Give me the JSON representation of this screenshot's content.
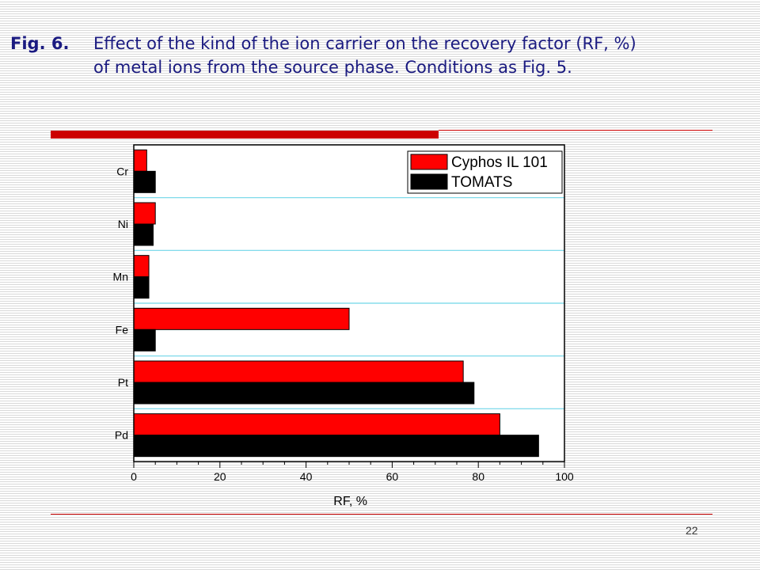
{
  "caption": {
    "fig_label": "Fig. 6.",
    "line1": "Effect of the kind of the ion carrier on the recovery factor (RF, %)",
    "line2": "of metal ions from the source phase. Conditions as Fig. 5."
  },
  "page_number": "22",
  "colors": {
    "accent": "#cc0000",
    "caption_text": "#1a1a80",
    "gridline": "#6fd6e8"
  },
  "chart_data": {
    "type": "bar",
    "orientation": "horizontal",
    "categories": [
      "Cr",
      "Ni",
      "Mn",
      "Fe",
      "Pt",
      "Pd"
    ],
    "series": [
      {
        "name": "Cyphos IL 101",
        "color": "#ff0000",
        "values": [
          3,
          5,
          3.5,
          50,
          76.5,
          85
        ]
      },
      {
        "name": "TOMATS",
        "color": "#000000",
        "values": [
          5,
          4.5,
          3.5,
          5,
          79,
          94
        ]
      }
    ],
    "xlabel": "RF, %",
    "ylabel": "",
    "xlim": [
      0,
      100
    ],
    "xticks": [
      0,
      20,
      40,
      60,
      80,
      100
    ],
    "legend_position": "top-right",
    "grid": "horizontal separators between categories"
  }
}
